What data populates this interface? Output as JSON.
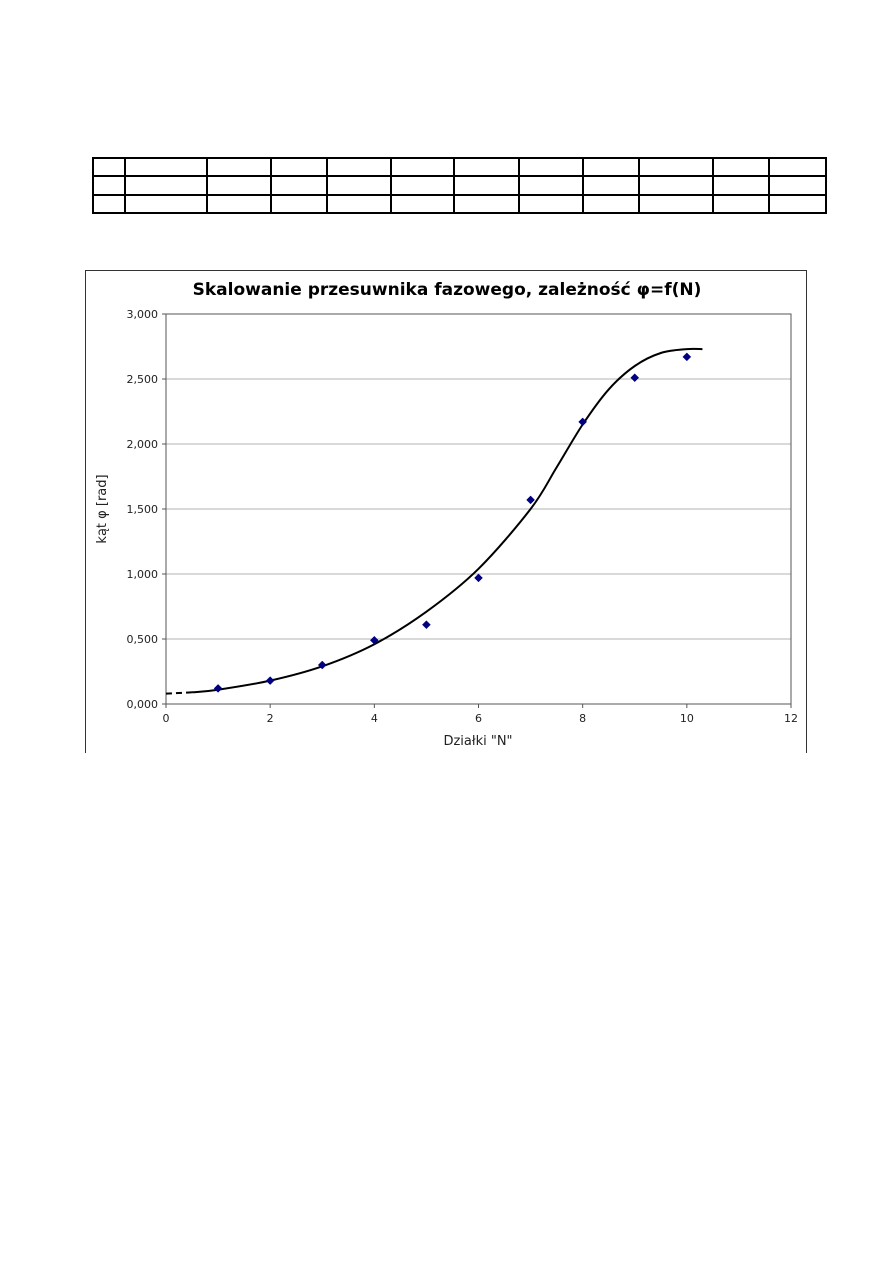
{
  "table": {
    "rows": 3,
    "cols": 12
  },
  "chart_data": {
    "type": "scatter",
    "title": "Skalowanie przesuwnika fazowego, zależność φ=f(N)",
    "xlabel": "Działki \"N\"",
    "ylabel": "kąt φ [rad]",
    "xlim": [
      0,
      12
    ],
    "ylim": [
      0,
      3
    ],
    "x_ticks": [
      0,
      2,
      4,
      6,
      8,
      10,
      12
    ],
    "x_tick_labels": [
      "0",
      "2",
      "4",
      "6",
      "8",
      "10",
      "12"
    ],
    "y_ticks": [
      0,
      0.5,
      1,
      1.5,
      2,
      2.5,
      3
    ],
    "y_tick_labels": [
      "0,000",
      "0,500",
      "1,000",
      "1,500",
      "2,000",
      "2,500",
      "3,000"
    ],
    "grid": "horizontal",
    "series": [
      {
        "marker": "diamond",
        "color": "#000080",
        "x": [
          1,
          2,
          3,
          4,
          5,
          6,
          7,
          8,
          9,
          10
        ],
        "y": [
          0.12,
          0.18,
          0.3,
          0.49,
          0.61,
          0.97,
          1.57,
          2.17,
          2.51,
          2.67
        ]
      }
    ],
    "trendline": {
      "color": "#000000",
      "dashed_until_x": 0.5,
      "x": [
        0,
        0.5,
        1,
        2,
        3,
        4,
        5,
        6,
        7,
        7.5,
        8,
        8.5,
        9,
        9.5,
        10,
        10.3
      ],
      "y": [
        0.08,
        0.09,
        0.11,
        0.18,
        0.29,
        0.46,
        0.71,
        1.04,
        1.5,
        1.82,
        2.15,
        2.42,
        2.6,
        2.7,
        2.73,
        2.73
      ]
    }
  }
}
